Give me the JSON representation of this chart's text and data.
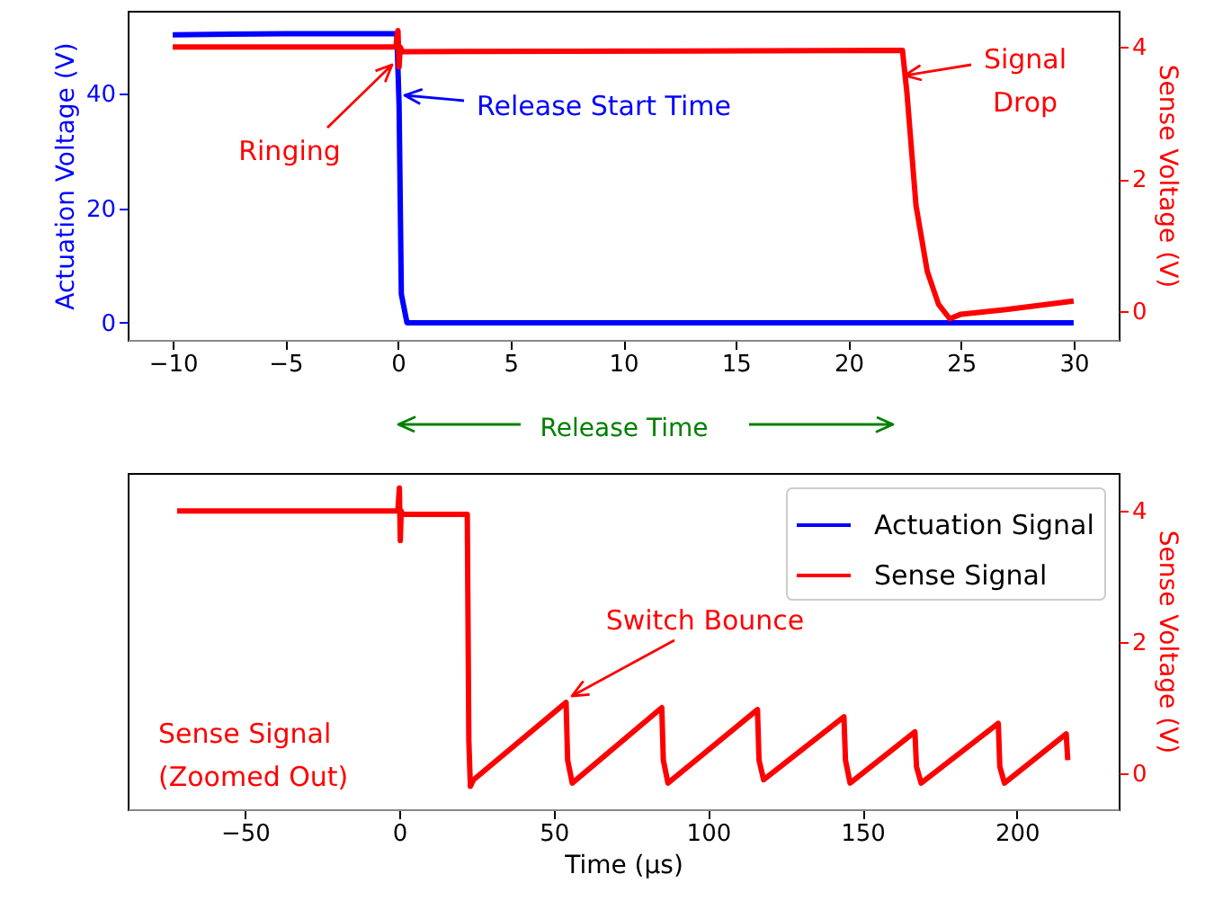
{
  "chart_data": [
    {
      "type": "line",
      "xlabel": "Release Time",
      "ylabel": "Actuation Voltage (V)",
      "y2label": "Sense Voltage (V)",
      "xlim": [
        -12,
        32
      ],
      "xticks": [
        -10,
        -5,
        0,
        5,
        10,
        15,
        20,
        25,
        30
      ],
      "ylim": [
        -3,
        54.5
      ],
      "yticks": [
        0,
        20,
        40
      ],
      "y2lim": [
        -0.44,
        4.55
      ],
      "y2ticks": [
        0,
        2,
        4
      ],
      "series": [
        {
          "color": "#0000ff",
          "x": [
            -10,
            -5,
            -0.05,
            0.05,
            0.15,
            0.4,
            30
          ],
          "values": [
            50.3,
            50.5,
            50.5,
            38,
            5,
            0,
            0
          ]
        },
        {
          "color": "#ff0000",
          "axis": "y2",
          "x": [
            -10,
            -0.1,
            0,
            0.05,
            0.1,
            0.2,
            22.4,
            22.6,
            23,
            23.5,
            24,
            24.5,
            25,
            27,
            30
          ],
          "values": [
            4.0,
            4.0,
            4.25,
            3.7,
            4.0,
            3.93,
            3.95,
            3.3,
            1.6,
            0.6,
            0.1,
            -0.12,
            -0.05,
            0.02,
            0.15
          ]
        }
      ],
      "annotations": [
        "Ringing",
        "Release Start Time",
        "Signal\nDrop"
      ]
    },
    {
      "type": "line",
      "xlabel": "Time (μs)",
      "y2label": "Sense Voltage (V)",
      "xlim": [
        -88,
        233
      ],
      "xticks": [
        -50,
        0,
        50,
        100,
        150,
        200
      ],
      "y2lim": [
        -0.55,
        4.58
      ],
      "y2ticks": [
        0,
        2,
        4
      ],
      "legend": "top right",
      "series": [
        {
          "name": "Actuation Signal",
          "color": "#0000ff",
          "axis": "y2"
        },
        {
          "name": "Sense Signal",
          "color": "#ff0000",
          "axis": "y2",
          "x": [
            -72,
            -0.5,
            0,
            0.3,
            0.6,
            1,
            22,
            22.5,
            23,
            24,
            54,
            54.5,
            56,
            85,
            85.5,
            87,
            116,
            116.5,
            118,
            144,
            144.5,
            146,
            167,
            167.5,
            169,
            194,
            194.5,
            196,
            216,
            216.5
          ],
          "values": [
            4.0,
            4.0,
            4.35,
            3.55,
            4.0,
            3.95,
            3.95,
            0.5,
            -0.2,
            -0.1,
            1.08,
            0.2,
            -0.15,
            1.0,
            0.2,
            -0.15,
            0.97,
            0.2,
            -0.1,
            0.86,
            0.2,
            -0.15,
            0.63,
            0.1,
            -0.15,
            0.76,
            0.1,
            -0.15,
            0.6,
            0.2
          ]
        }
      ],
      "annotations": [
        "Switch Bounce",
        "Sense Signal\n(Zoomed Out)"
      ]
    }
  ]
}
